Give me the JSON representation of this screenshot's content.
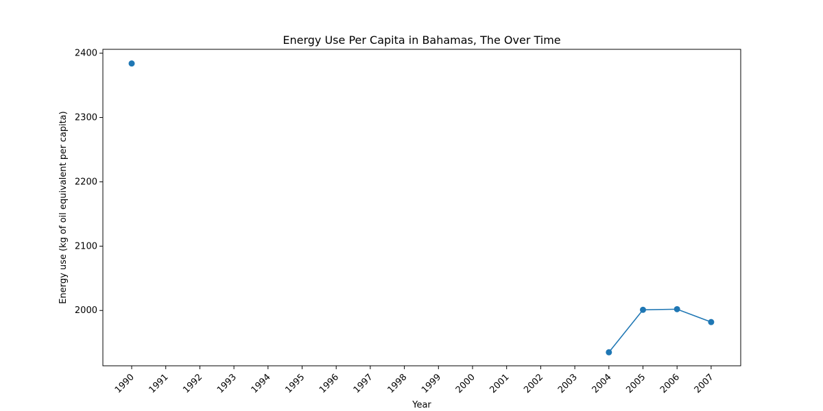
{
  "chart_data": {
    "type": "line",
    "title": "Energy Use Per Capita in Bahamas, The Over Time",
    "xlabel": "Year",
    "ylabel": "Energy use (kg of oil equivalent per capita)",
    "categories": [
      "1990",
      "1991",
      "1992",
      "1993",
      "1994",
      "1995",
      "1996",
      "1997",
      "1998",
      "1999",
      "2000",
      "2001",
      "2002",
      "2003",
      "2004",
      "2005",
      "2006",
      "2007"
    ],
    "yticks": [
      2000,
      2100,
      2200,
      2300,
      2400
    ],
    "ylim": [
      1914,
      2406
    ],
    "grid": false,
    "series": [
      {
        "color": "#1f77b4",
        "values": [
          2384,
          null,
          null,
          null,
          null,
          null,
          null,
          null,
          null,
          null,
          null,
          null,
          null,
          null,
          1935,
          2001,
          2002,
          1982
        ]
      }
    ]
  }
}
